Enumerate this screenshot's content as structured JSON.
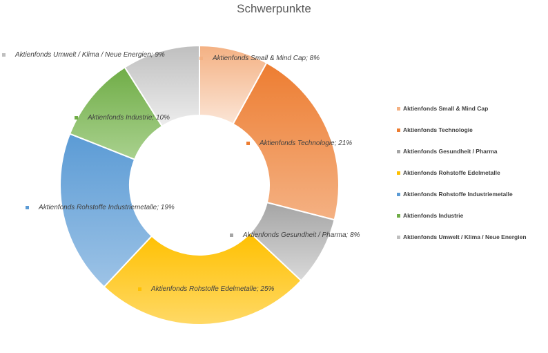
{
  "chart_data": {
    "type": "pie",
    "donut": true,
    "title": "Schwerpunkte",
    "legend_position": "right",
    "slices": [
      {
        "name": "Aktienfonds Small & Mind Cap",
        "value": 8,
        "label": "Aktienfonds Small & Mind Cap; 8%",
        "color": "#F4B183",
        "color_light": "#FBE5D6"
      },
      {
        "name": "Aktienfonds Technologie",
        "value": 21,
        "label": "Aktienfonds Technologie; 21%",
        "color": "#ED7D31",
        "color_light": "#F4B183"
      },
      {
        "name": "Aktienfonds Gesundheit / Pharma",
        "value": 8,
        "label": "Aktienfonds Gesundheit / Pharma; 8%",
        "color": "#A5A5A5",
        "color_light": "#D9D9D9"
      },
      {
        "name": "Aktienfonds Rohstoffe Edelmetalle",
        "value": 25,
        "label": "Aktienfonds Rohstoffe Edelmetalle; 25%",
        "color": "#FFC000",
        "color_light": "#FFD966"
      },
      {
        "name": "Aktienfonds Rohstoffe Industriemetalle",
        "value": 19,
        "label": "Aktienfonds Rohstoffe Industriemetalle; 19%",
        "color": "#5B9BD5",
        "color_light": "#9DC3E6"
      },
      {
        "name": "Aktienfonds Industrie",
        "value": 10,
        "label": "Aktienfonds Industrie; 10%",
        "color": "#70AD47",
        "color_light": "#A9D18E"
      },
      {
        "name": "Aktienfonds Umwelt / Klima / Neue Energien",
        "value": 9,
        "label": "Aktienfonds Umwelt / Klima / Neue Energien; 9%",
        "color": "#BFBFBF",
        "color_light": "#EDEDED"
      }
    ]
  }
}
